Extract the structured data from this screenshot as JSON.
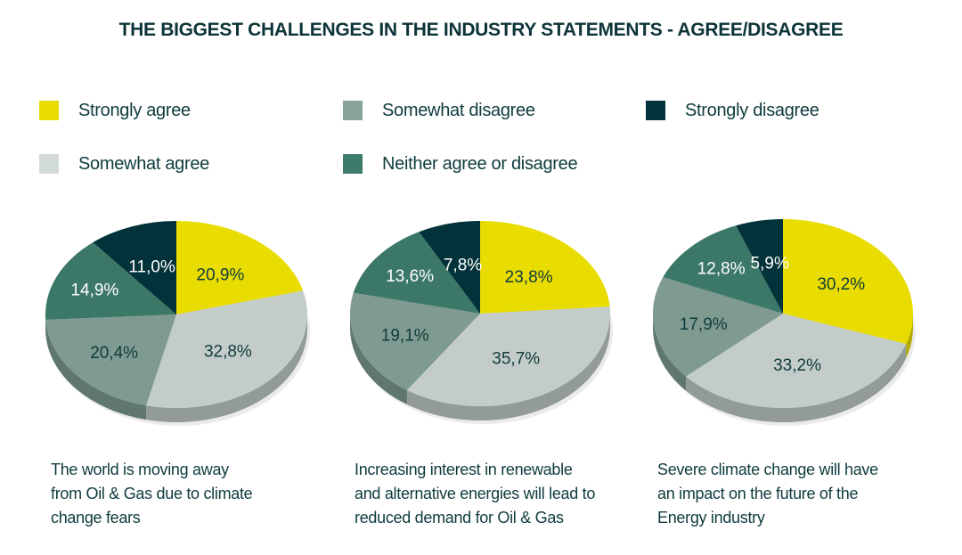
{
  "chart_data": {
    "type": "pie",
    "title": "THE BIGGEST CHALLENGES IN THE INDUSTRY STATEMENTS - AGREE/DISAGREE",
    "legend": [
      {
        "label": "Strongly agree",
        "color": "#e8dc00"
      },
      {
        "label": "Somewhat agree",
        "color": "#c4ccc9"
      },
      {
        "label": "Somewhat disagree",
        "color": "#7f9a90"
      },
      {
        "label": "Neither agree or disagree",
        "color": "#3c7868"
      },
      {
        "label": "Strongly disagree",
        "color": "#03333a"
      }
    ],
    "side_colors": [
      "#b5ab00",
      "#929b98",
      "#5f776e",
      "#2b5a4e",
      "#022328"
    ],
    "categories": [
      "Strongly agree",
      "Somewhat agree",
      "Somewhat disagree",
      "Neither agree or disagree",
      "Strongly disagree"
    ],
    "pies": [
      {
        "caption": [
          "The world is moving away",
          "from Oil & Gas due to climate",
          "change fears"
        ],
        "values": [
          20.9,
          32.8,
          20.4,
          14.9,
          11.0
        ],
        "labels": [
          "20,9%",
          "32,8%",
          "20,4%",
          "14,9%",
          "11,0%"
        ]
      },
      {
        "caption": [
          "Increasing interest in renewable",
          "and alternative energies will lead to",
          "reduced demand for Oil & Gas"
        ],
        "values": [
          23.8,
          35.7,
          19.1,
          13.6,
          7.8
        ],
        "labels": [
          "23,8%",
          "35,7%",
          "19,1%",
          "13,6%",
          "7,8%"
        ]
      },
      {
        "caption": [
          "Severe climate change will have",
          "an impact on the future of the",
          "Energy industry"
        ],
        "values": [
          30.2,
          33.2,
          17.9,
          12.8,
          5.9
        ],
        "labels": [
          "30,2%",
          "33,2%",
          "17,9%",
          "12,8%",
          "5,9%"
        ]
      }
    ],
    "label_colors": [
      "#0f3b3d",
      "#0f3b3d",
      "#0f3b3d",
      "#ffffff",
      "#ffffff"
    ]
  }
}
